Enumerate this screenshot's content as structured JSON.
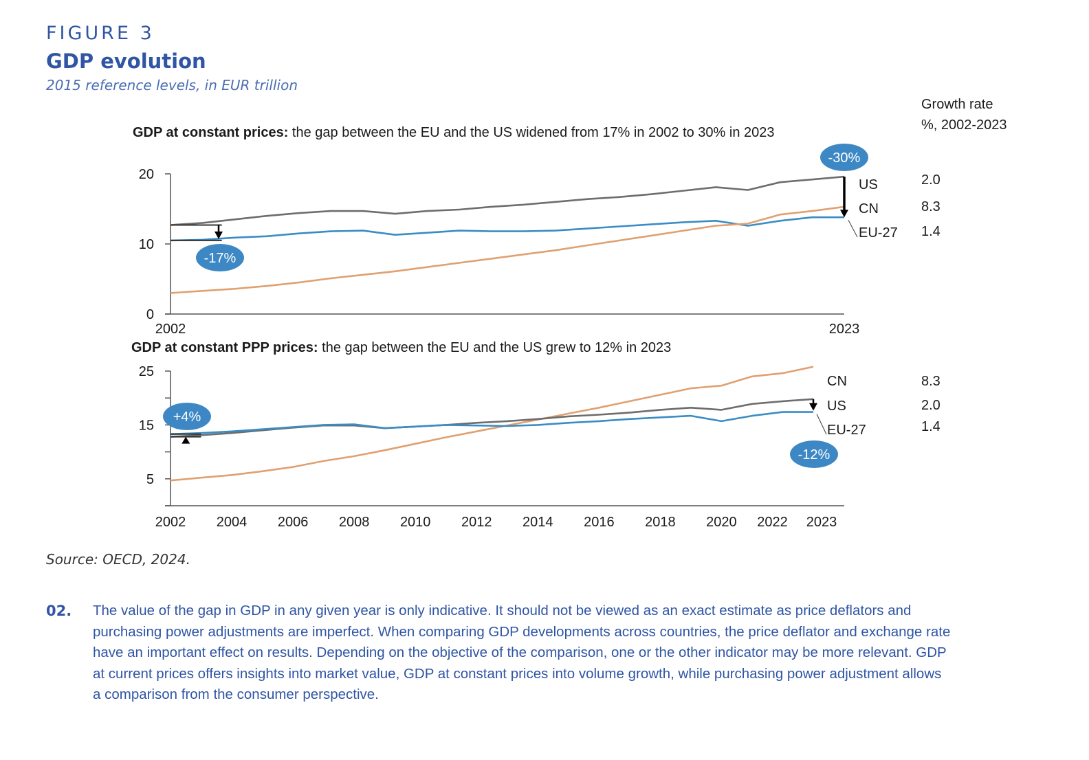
{
  "header": {
    "figure_label": "FIGURE 3",
    "title": "GDP evolution",
    "subtitle": "2015 reference levels, in EUR trillion"
  },
  "growth_header": {
    "title": "Growth rate",
    "subtitle": "%, 2002-2023"
  },
  "colors": {
    "US": "#6d6d6d",
    "EU-27": "#3a8cc4",
    "CN": "#e0a070",
    "bubble": "#3d88c4",
    "brand": "#2f55a4"
  },
  "chart_data": [
    {
      "type": "line",
      "title_bold": "GDP at constant prices:",
      "title_rest": " the gap between the EU and the US widened from 17% in 2002 to 30% in 2023",
      "xlabel": "",
      "ylabel": "",
      "ylim": [
        0,
        20
      ],
      "yticks": [
        0,
        10,
        20
      ],
      "ytick_labels": [
        "0",
        "10",
        "20"
      ],
      "x": [
        2002,
        2003,
        2004,
        2005,
        2006,
        2007,
        2008,
        2009,
        2010,
        2011,
        2012,
        2013,
        2014,
        2015,
        2016,
        2017,
        2018,
        2019,
        2020,
        2021,
        2022,
        2023
      ],
      "xtick_labels": [
        "2002",
        "2023"
      ],
      "grid": false,
      "series": [
        {
          "name": "US",
          "values": [
            12.7,
            13.0,
            13.5,
            14.0,
            14.4,
            14.7,
            14.7,
            14.3,
            14.7,
            14.9,
            15.3,
            15.6,
            16.0,
            16.4,
            16.7,
            17.1,
            17.6,
            18.1,
            17.7,
            18.8,
            19.2,
            19.6
          ]
        },
        {
          "name": "EU-27",
          "values": [
            10.5,
            10.6,
            10.9,
            11.1,
            11.5,
            11.8,
            11.9,
            11.3,
            11.6,
            11.9,
            11.8,
            11.8,
            11.9,
            12.2,
            12.5,
            12.8,
            13.1,
            13.3,
            12.6,
            13.3,
            13.8,
            13.8
          ]
        },
        {
          "name": "CN",
          "values": [
            3.0,
            3.3,
            3.6,
            4.0,
            4.5,
            5.1,
            5.6,
            6.1,
            6.7,
            7.3,
            7.9,
            8.5,
            9.1,
            9.8,
            10.5,
            11.2,
            11.9,
            12.6,
            12.9,
            14.2,
            14.7,
            15.3
          ]
        }
      ],
      "annotations": [
        {
          "label": "-17%",
          "year": 2002
        },
        {
          "label": "-30%",
          "year": 2023
        }
      ],
      "end_labels": [
        "US",
        "CN",
        "EU-27"
      ],
      "growth_rates": [
        {
          "name": "US",
          "value": "2.0"
        },
        {
          "name": "CN",
          "value": "8.3"
        },
        {
          "name": "EU-27",
          "value": "1.4"
        }
      ]
    },
    {
      "type": "line",
      "title_bold": "GDP at constant PPP prices:",
      "title_rest": " the gap between the EU and the US grew to 12% in 2023",
      "xlabel": "",
      "ylabel": "",
      "ylim": [
        0,
        25
      ],
      "yticks": [
        0,
        5,
        10,
        15,
        20,
        25
      ],
      "ytick_labels": [
        "",
        "5",
        "",
        "15",
        "",
        "25"
      ],
      "x": [
        2002,
        2003,
        2004,
        2005,
        2006,
        2007,
        2008,
        2009,
        2010,
        2011,
        2012,
        2013,
        2014,
        2015,
        2016,
        2017,
        2018,
        2019,
        2020,
        2021,
        2022,
        2023
      ],
      "xtick_labels": [
        "2002",
        "2004",
        "2006",
        "2008",
        "2010",
        "2012",
        "2014",
        "2016",
        "2018",
        "2020",
        "2022",
        "2023"
      ],
      "grid": false,
      "series": [
        {
          "name": "CN",
          "values": [
            4.7,
            5.2,
            5.7,
            6.4,
            7.2,
            8.3,
            9.2,
            10.3,
            11.5,
            12.7,
            13.8,
            14.9,
            16.0,
            17.1,
            18.2,
            19.4,
            20.6,
            21.8,
            22.3,
            24.0,
            24.6,
            25.8
          ]
        },
        {
          "name": "US",
          "values": [
            12.8,
            13.1,
            13.5,
            14.0,
            14.5,
            14.9,
            14.9,
            14.4,
            14.7,
            15.0,
            15.4,
            15.7,
            16.1,
            16.6,
            16.9,
            17.3,
            17.8,
            18.2,
            17.8,
            18.9,
            19.4,
            19.8
          ]
        },
        {
          "name": "EU-27",
          "values": [
            13.3,
            13.5,
            13.8,
            14.2,
            14.6,
            15.0,
            15.1,
            14.4,
            14.7,
            15.0,
            14.9,
            14.8,
            15.0,
            15.4,
            15.7,
            16.1,
            16.4,
            16.7,
            15.7,
            16.7,
            17.4,
            17.4
          ]
        }
      ],
      "annotations": [
        {
          "label": "+4%",
          "year": 2002
        },
        {
          "label": "-12%",
          "year": 2023
        }
      ],
      "end_labels": [
        "CN",
        "US",
        "EU-27"
      ],
      "growth_rates": [
        {
          "name": "CN",
          "value": "8.3"
        },
        {
          "name": "US",
          "value": "2.0"
        },
        {
          "name": "EU-27",
          "value": "1.4"
        }
      ]
    }
  ],
  "source": "Source: OECD, 2024.",
  "note": {
    "number": "02.",
    "text": "The value of the gap in GDP in any given year is only indicative. It should not be viewed as an exact estimate as price deflators and purchasing power adjustments are imperfect. When comparing GDP developments across countries, the price deflator and exchange rate have an important effect on results. Depending on the objective of the comparison, one or the other indicator may be more relevant. GDP at current prices offers insights into market value, GDP at constant prices into volume growth, while purchasing power adjustment allows a comparison from the consumer perspective."
  }
}
